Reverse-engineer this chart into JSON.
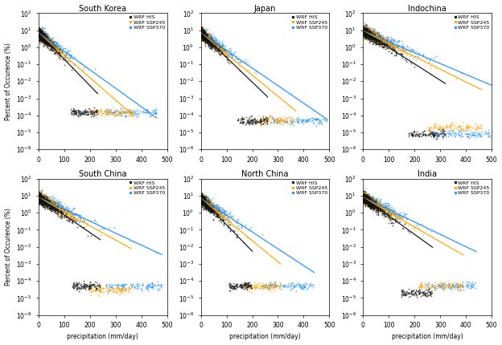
{
  "panels": [
    {
      "title": "South Korea",
      "his_lambda": 28,
      "ssp245_lambda": 33,
      "ssp370_lambda": 40,
      "his_max": 230,
      "ssp245_max": 370,
      "ssp370_max": 460,
      "his_floor": 0.00015,
      "ssp245_floor": 0.00015,
      "ssp370_floor": 0.00015,
      "start_y": 7.0
    },
    {
      "title": "Japan",
      "his_lambda": 30,
      "ssp245_lambda": 35,
      "ssp370_lambda": 42,
      "his_max": 260,
      "ssp245_max": 370,
      "ssp370_max": 490,
      "his_floor": 5e-05,
      "ssp245_floor": 5e-05,
      "ssp370_floor": 5e-05,
      "start_y": 7.0
    },
    {
      "title": "Indochina",
      "his_lambda": 45,
      "ssp245_lambda": 58,
      "ssp370_lambda": 68,
      "his_max": 320,
      "ssp245_max": 460,
      "ssp370_max": 500,
      "his_floor": 8e-06,
      "ssp245_floor": 2e-05,
      "ssp370_floor": 8e-06,
      "start_y": 9.0
    },
    {
      "title": "South China",
      "his_lambda": 42,
      "ssp245_lambda": 52,
      "ssp370_lambda": 62,
      "his_max": 240,
      "ssp245_max": 360,
      "ssp370_max": 480,
      "his_floor": 5e-05,
      "ssp245_floor": 3e-05,
      "ssp370_floor": 5e-05,
      "start_y": 8.0
    },
    {
      "title": "North China",
      "his_lambda": 28,
      "ssp245_lambda": 35,
      "ssp370_lambda": 44,
      "his_max": 200,
      "ssp245_max": 310,
      "ssp370_max": 440,
      "his_floor": 5e-05,
      "ssp245_floor": 5e-05,
      "ssp370_floor": 5e-05,
      "start_y": 7.0
    },
    {
      "title": "India",
      "his_lambda": 40,
      "ssp245_lambda": 50,
      "ssp370_lambda": 60,
      "his_max": 270,
      "ssp245_max": 390,
      "ssp370_max": 440,
      "his_floor": 2e-05,
      "ssp245_floor": 5e-05,
      "ssp370_floor": 5e-05,
      "start_y": 8.0
    }
  ],
  "colors": {
    "his": "#111111",
    "ssp245": "#FFA500",
    "ssp370": "#1E90FF"
  },
  "legend_labels": [
    "WRF HIS",
    "WRF SSP245",
    "WRF SSP370"
  ],
  "xlabel": "precipitation (mm/day)",
  "ylabel": "Percent of Occurence (%)",
  "ylim_bottom": 1e-06,
  "ylim_top": 100.0,
  "xlim": [
    0,
    500
  ]
}
